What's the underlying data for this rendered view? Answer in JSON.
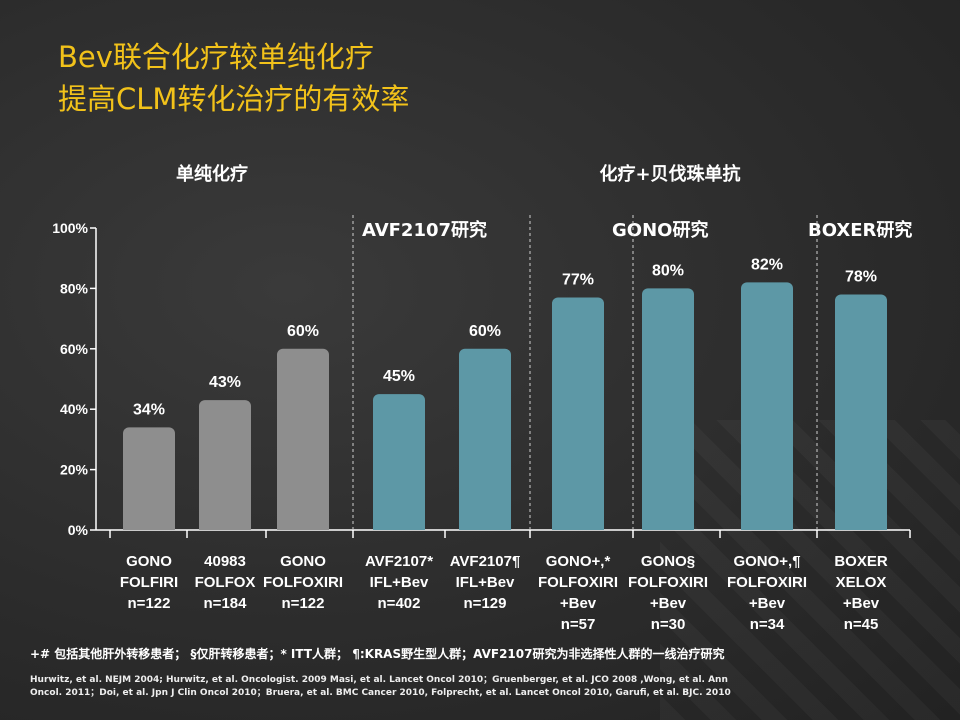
{
  "title": {
    "line1": "Bev联合化疗较单纯化疗",
    "line2": "提高CLM转化治疗的有效率"
  },
  "group_labels": {
    "chemo_only": "单纯化疗",
    "chemo_bev": "化疗+贝伐珠单抗"
  },
  "study_labels": {
    "avf2107": "AVF2107研究",
    "gono": "GONO研究",
    "boxer": "BOXER研究"
  },
  "footnote": "+# 包括其他肝外转移患者； §仅肝转移患者；* ITT人群； ¶:KRAS野生型人群；AVF2107研究为非选择性人群的一线治疗研究",
  "references": "Hurwitz, et al. NEJM 2004; Hurwitz, et al. Oncologist. 2009 Masi, et al. Lancet Oncol 2010；Gruenberger, et al. JCO 2008 ,Wong, et al. Ann Oncol. 2011；Doi, et al. Jpn J Clin Oncol 2010；Bruera, et al. BMC Cancer 2010, Folprecht, et al. Lancet Oncol 2010, Garufi, et al. BJC. 2010",
  "colors": {
    "title": "#f2c21a",
    "chemo_bar": "#8e8e8e",
    "bev_bar": "#5d98a6",
    "axis": "#ffffff"
  },
  "chart_data": {
    "type": "bar",
    "ylim": [
      0,
      100
    ],
    "yticks": [
      "0%",
      "20%",
      "40%",
      "60%",
      "80%",
      "100%"
    ],
    "grid": false,
    "categories": [
      [
        "GONO",
        "FOLFIRI",
        "n=122"
      ],
      [
        "40983",
        "FOLFOX",
        "n=184"
      ],
      [
        "GONO",
        "FOLFOXIRI",
        "n=122"
      ],
      [
        "AVF2107*",
        "IFL+Bev",
        "n=402"
      ],
      [
        "AVF2107¶",
        "IFL+Bev",
        "n=129"
      ],
      [
        "GONO+,*",
        "FOLFOXIRI",
        "+Bev",
        "n=57"
      ],
      [
        "GONO§",
        "FOLFOXIRI",
        "+Bev",
        "n=30"
      ],
      [
        "GONO+,¶",
        "FOLFOXIRI",
        "+Bev",
        "n=34"
      ],
      [
        "BOXER",
        "XELOX",
        "+Bev",
        "n=45"
      ]
    ],
    "values": [
      34,
      43,
      60,
      45,
      60,
      77,
      80,
      82,
      78
    ],
    "value_labels": [
      "34%",
      "43%",
      "60%",
      "45%",
      "60%",
      "77%",
      "80%",
      "82%",
      "78%"
    ],
    "groups": [
      "chemo",
      "chemo",
      "chemo",
      "bev",
      "bev",
      "bev",
      "bev",
      "bev",
      "bev"
    ]
  }
}
